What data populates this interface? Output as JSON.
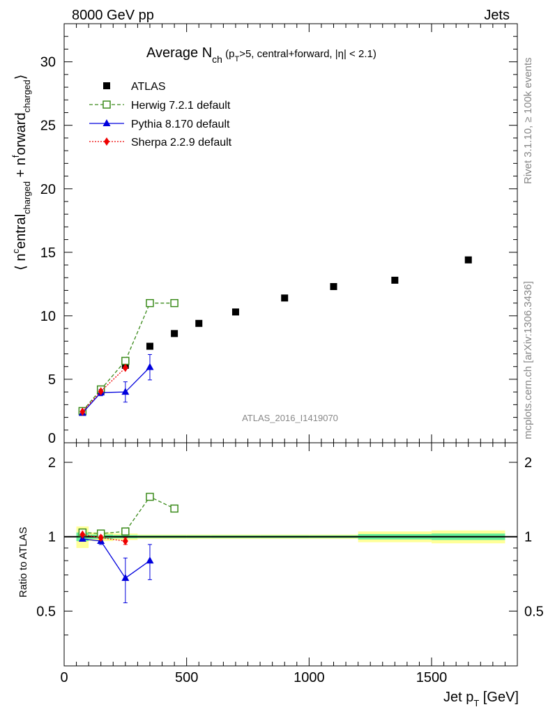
{
  "header": {
    "left": "8000 GeV pp",
    "right": "Jets",
    "title_main": "Average N",
    "title_sub": "ch",
    "title_cuts_a": " (p",
    "title_cuts_sub": "T",
    "title_cuts_b": ">5, central+forward, |η| < 2.1)"
  },
  "side_labels": {
    "rivet": "Rivet 3.1.10, ≥ 100k events",
    "mcplots": "mcplots.cern.ch [arXiv:1306.3436]"
  },
  "watermark": "ATLAS_2016_I1419070",
  "axes": {
    "ylabel_main": "⟨ n^central_charged + n^forward_charged ⟩",
    "ylabel_ratio": "Ratio to ATLAS",
    "xlabel": "Jet p_T [GeV]",
    "xticks": [
      "0",
      "500",
      "1000",
      "1500"
    ],
    "yticks_main": [
      "0",
      "5",
      "10",
      "15",
      "20",
      "25",
      "30"
    ],
    "yticks_ratio": [
      "0.5",
      "1",
      "2"
    ]
  },
  "legend": [
    {
      "name": "ATLAS"
    },
    {
      "name": "Herwig 7.2.1 default"
    },
    {
      "name": "Pythia 8.170 default"
    },
    {
      "name": "Sherpa 2.2.9 default"
    }
  ],
  "chart_data": {
    "type": "scatter",
    "xlim": [
      0,
      1850
    ],
    "ylim": [
      0,
      33
    ],
    "ratio_ylim": [
      0.3,
      2.4
    ],
    "ratio_scale": "log",
    "grid": false,
    "legend_position": "top-left",
    "series": [
      {
        "name": "ATLAS",
        "color": "#000000",
        "marker": "filled-square",
        "x": [
          75,
          150,
          250,
          350,
          450,
          550,
          700,
          900,
          1100,
          1350,
          1650
        ],
        "xerr": [
          25,
          50,
          50,
          50,
          50,
          50,
          100,
          100,
          100,
          150,
          150
        ],
        "y": [
          2.4,
          4.1,
          6.1,
          7.6,
          8.6,
          9.4,
          10.3,
          11.4,
          12.3,
          12.8,
          14.4
        ],
        "ratio": [
          1,
          1,
          1,
          1,
          1,
          1,
          1,
          1,
          1,
          1,
          1
        ]
      },
      {
        "name": "Herwig 7.2.1 default",
        "color": "#3a8a1a",
        "marker": "open-square",
        "line": "dashed",
        "x": [
          75,
          150,
          250,
          350,
          450
        ],
        "y": [
          2.5,
          4.2,
          6.45,
          11.0,
          11.0
        ],
        "ratio": [
          1.04,
          1.03,
          1.05,
          1.45,
          1.3
        ]
      },
      {
        "name": "Pythia 8.170 default",
        "color": "#0000dd",
        "marker": "filled-triangle",
        "line": "solid",
        "x": [
          75,
          150,
          250,
          350
        ],
        "y": [
          2.35,
          3.95,
          4.0,
          5.95
        ],
        "yerr": [
          0.15,
          0.25,
          0.8,
          1.0
        ],
        "ratio": [
          0.98,
          0.96,
          0.68,
          0.8
        ],
        "ratio_err": [
          0.02,
          0.03,
          0.14,
          0.13
        ]
      },
      {
        "name": "Sherpa 2.2.9 default",
        "color": "#ee0000",
        "marker": "filled-diamond",
        "line": "dotted",
        "x": [
          75,
          150,
          250
        ],
        "y": [
          2.45,
          4.05,
          5.9
        ],
        "ratio": [
          1.02,
          0.99,
          0.96
        ],
        "ratio_err": [
          0.01,
          0.02,
          0.03
        ]
      }
    ],
    "ratio_bands": {
      "x_edges": [
        50,
        100,
        200,
        300,
        400,
        500,
        600,
        800,
        1000,
        1200,
        1500,
        1800
      ],
      "inner_half_width": [
        0.04,
        0.02,
        0.015,
        0.012,
        0.012,
        0.012,
        0.012,
        0.012,
        0.012,
        0.025,
        0.03
      ],
      "outer_half_width": [
        0.1,
        0.04,
        0.03,
        0.02,
        0.02,
        0.02,
        0.02,
        0.02,
        0.02,
        0.05,
        0.06
      ],
      "inner_color": "#66ee99",
      "outer_color": "#ffff99"
    }
  }
}
